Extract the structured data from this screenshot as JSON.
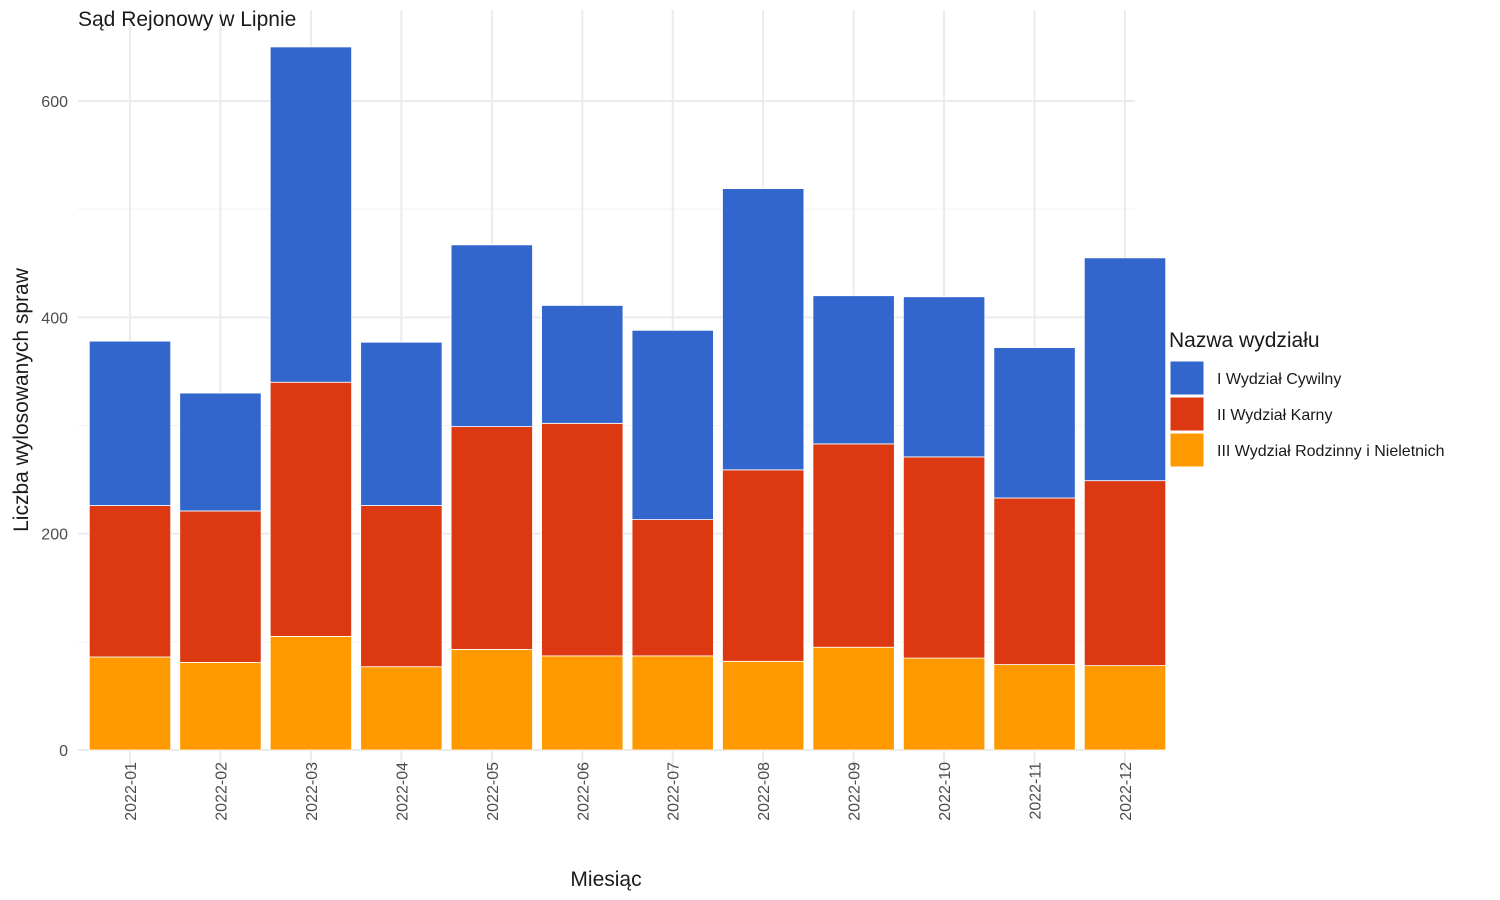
{
  "chart_data": {
    "type": "bar",
    "stacked": true,
    "title": "Sąd Rejonowy w Lipnie",
    "xlabel": "Miesiąc",
    "ylabel": "Liczba wylosowanych spraw",
    "ylim": [
      0,
      650
    ],
    "yticks": [
      0,
      200,
      400,
      600
    ],
    "categories": [
      "2022-01",
      "2022-02",
      "2022-03",
      "2022-04",
      "2022-05",
      "2022-06",
      "2022-07",
      "2022-08",
      "2022-09",
      "2022-10",
      "2022-11",
      "2022-12"
    ],
    "legend": {
      "title": "Nazwa wydziału",
      "position": "right"
    },
    "grid": true,
    "series": [
      {
        "name": "III Wydział Rodzinny i Nieletnich",
        "color": "#FF9900",
        "values": [
          86,
          81,
          105,
          77,
          93,
          87,
          87,
          82,
          95,
          85,
          79,
          78
        ]
      },
      {
        "name": "II Wydział Karny",
        "color": "#DC3912",
        "values": [
          140,
          140,
          235,
          149,
          206,
          215,
          126,
          177,
          188,
          186,
          154,
          171
        ]
      },
      {
        "name": "I Wydział Cywilny",
        "color": "#3366CC",
        "values": [
          152,
          109,
          310,
          151,
          168,
          109,
          175,
          260,
          137,
          148,
          139,
          206
        ]
      }
    ],
    "legend_order": [
      "I Wydział Cywilny",
      "II Wydział Karny",
      "III Wydział Rodzinny i Nieletnich"
    ]
  }
}
